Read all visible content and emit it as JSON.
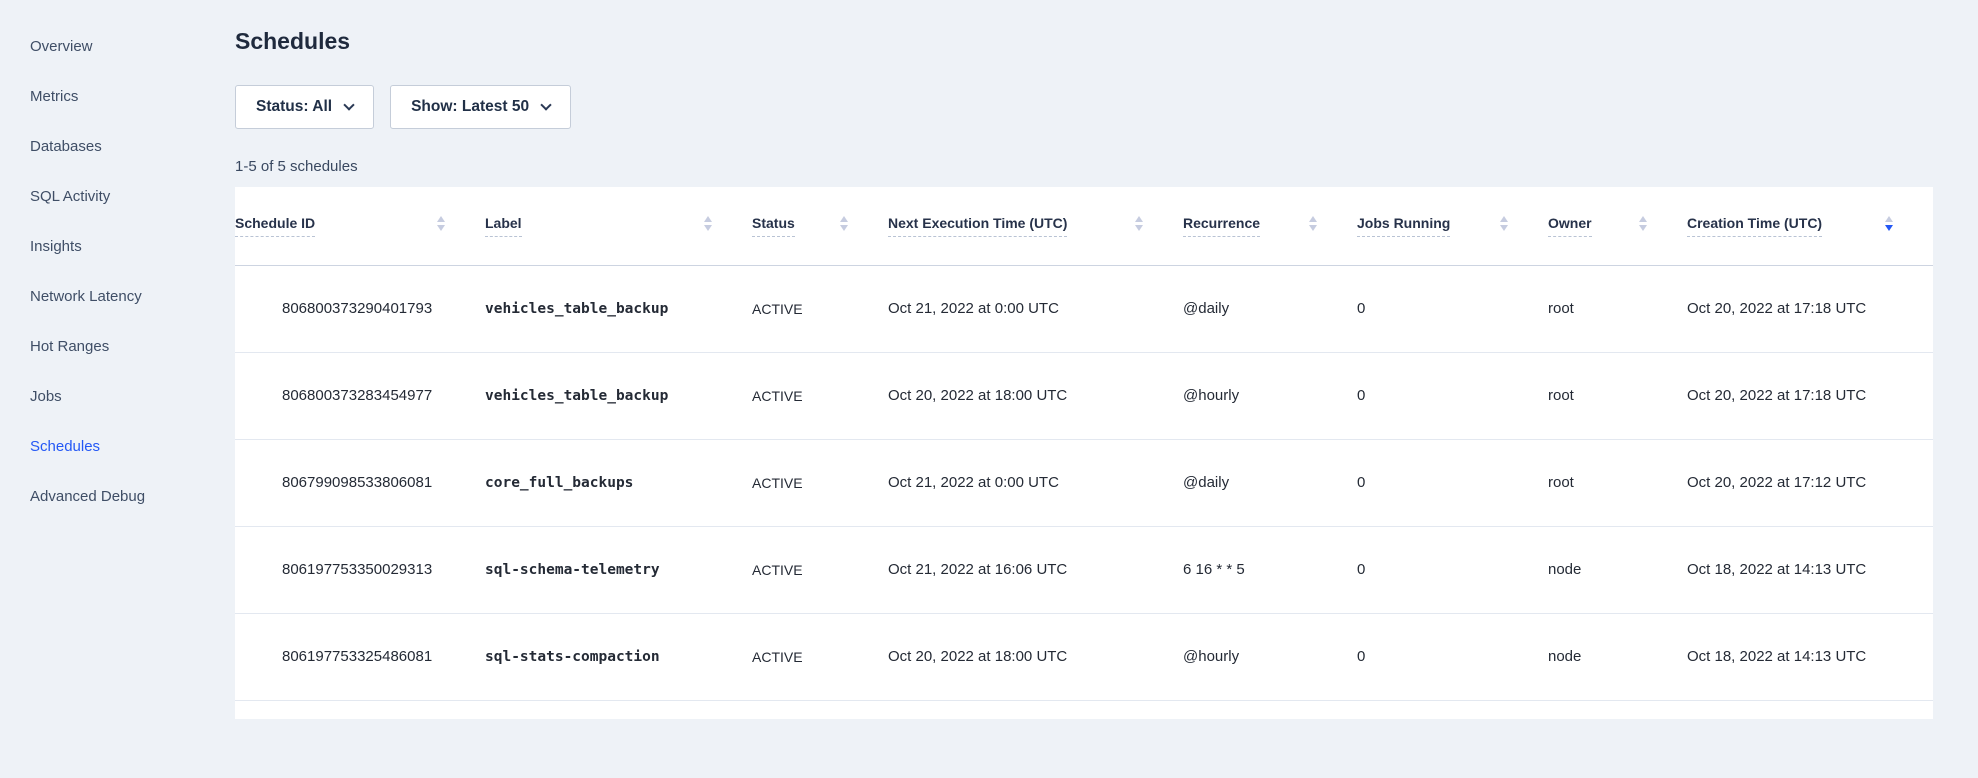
{
  "colors": {
    "accent": "#2458f5"
  },
  "sidebar": {
    "items": [
      {
        "label": "Overview",
        "active": false
      },
      {
        "label": "Metrics",
        "active": false
      },
      {
        "label": "Databases",
        "active": false
      },
      {
        "label": "SQL Activity",
        "active": false
      },
      {
        "label": "Insights",
        "active": false
      },
      {
        "label": "Network Latency",
        "active": false
      },
      {
        "label": "Hot Ranges",
        "active": false
      },
      {
        "label": "Jobs",
        "active": false
      },
      {
        "label": "Schedules",
        "active": true
      },
      {
        "label": "Advanced Debug",
        "active": false
      }
    ]
  },
  "header": {
    "title": "Schedules"
  },
  "filters": {
    "status_label": "Status: All",
    "show_label": "Show: Latest 50"
  },
  "results_summary": "1-5 of 5 schedules",
  "table": {
    "columns": [
      {
        "label": "Schedule ID"
      },
      {
        "label": "Label"
      },
      {
        "label": "Status"
      },
      {
        "label": "Next Execution Time (UTC)"
      },
      {
        "label": "Recurrence"
      },
      {
        "label": "Jobs Running"
      },
      {
        "label": "Owner"
      },
      {
        "label": "Creation Time (UTC)",
        "sort_desc": true
      }
    ],
    "rows": [
      {
        "schedule_id": "806800373290401793",
        "label": "vehicles_table_backup",
        "status": "ACTIVE",
        "next_execution": "Oct 21, 2022 at 0:00 UTC",
        "recurrence": "@daily",
        "jobs_running": "0",
        "owner": "root",
        "creation_time": "Oct 20, 2022 at 17:18 UTC"
      },
      {
        "schedule_id": "806800373283454977",
        "label": "vehicles_table_backup",
        "status": "ACTIVE",
        "next_execution": "Oct 20, 2022 at 18:00 UTC",
        "recurrence": "@hourly",
        "jobs_running": "0",
        "owner": "root",
        "creation_time": "Oct 20, 2022 at 17:18 UTC"
      },
      {
        "schedule_id": "806799098533806081",
        "label": "core_full_backups",
        "status": "ACTIVE",
        "next_execution": "Oct 21, 2022 at 0:00 UTC",
        "recurrence": "@daily",
        "jobs_running": "0",
        "owner": "root",
        "creation_time": "Oct 20, 2022 at 17:12 UTC"
      },
      {
        "schedule_id": "806197753350029313",
        "label": "sql-schema-telemetry",
        "status": "ACTIVE",
        "next_execution": "Oct 21, 2022 at 16:06 UTC",
        "recurrence": "6 16 * * 5",
        "jobs_running": "0",
        "owner": "node",
        "creation_time": "Oct 18, 2022 at 14:13 UTC"
      },
      {
        "schedule_id": "806197753325486081",
        "label": "sql-stats-compaction",
        "status": "ACTIVE",
        "next_execution": "Oct 20, 2022 at 18:00 UTC",
        "recurrence": "@hourly",
        "jobs_running": "0",
        "owner": "node",
        "creation_time": "Oct 18, 2022 at 14:13 UTC"
      }
    ]
  }
}
